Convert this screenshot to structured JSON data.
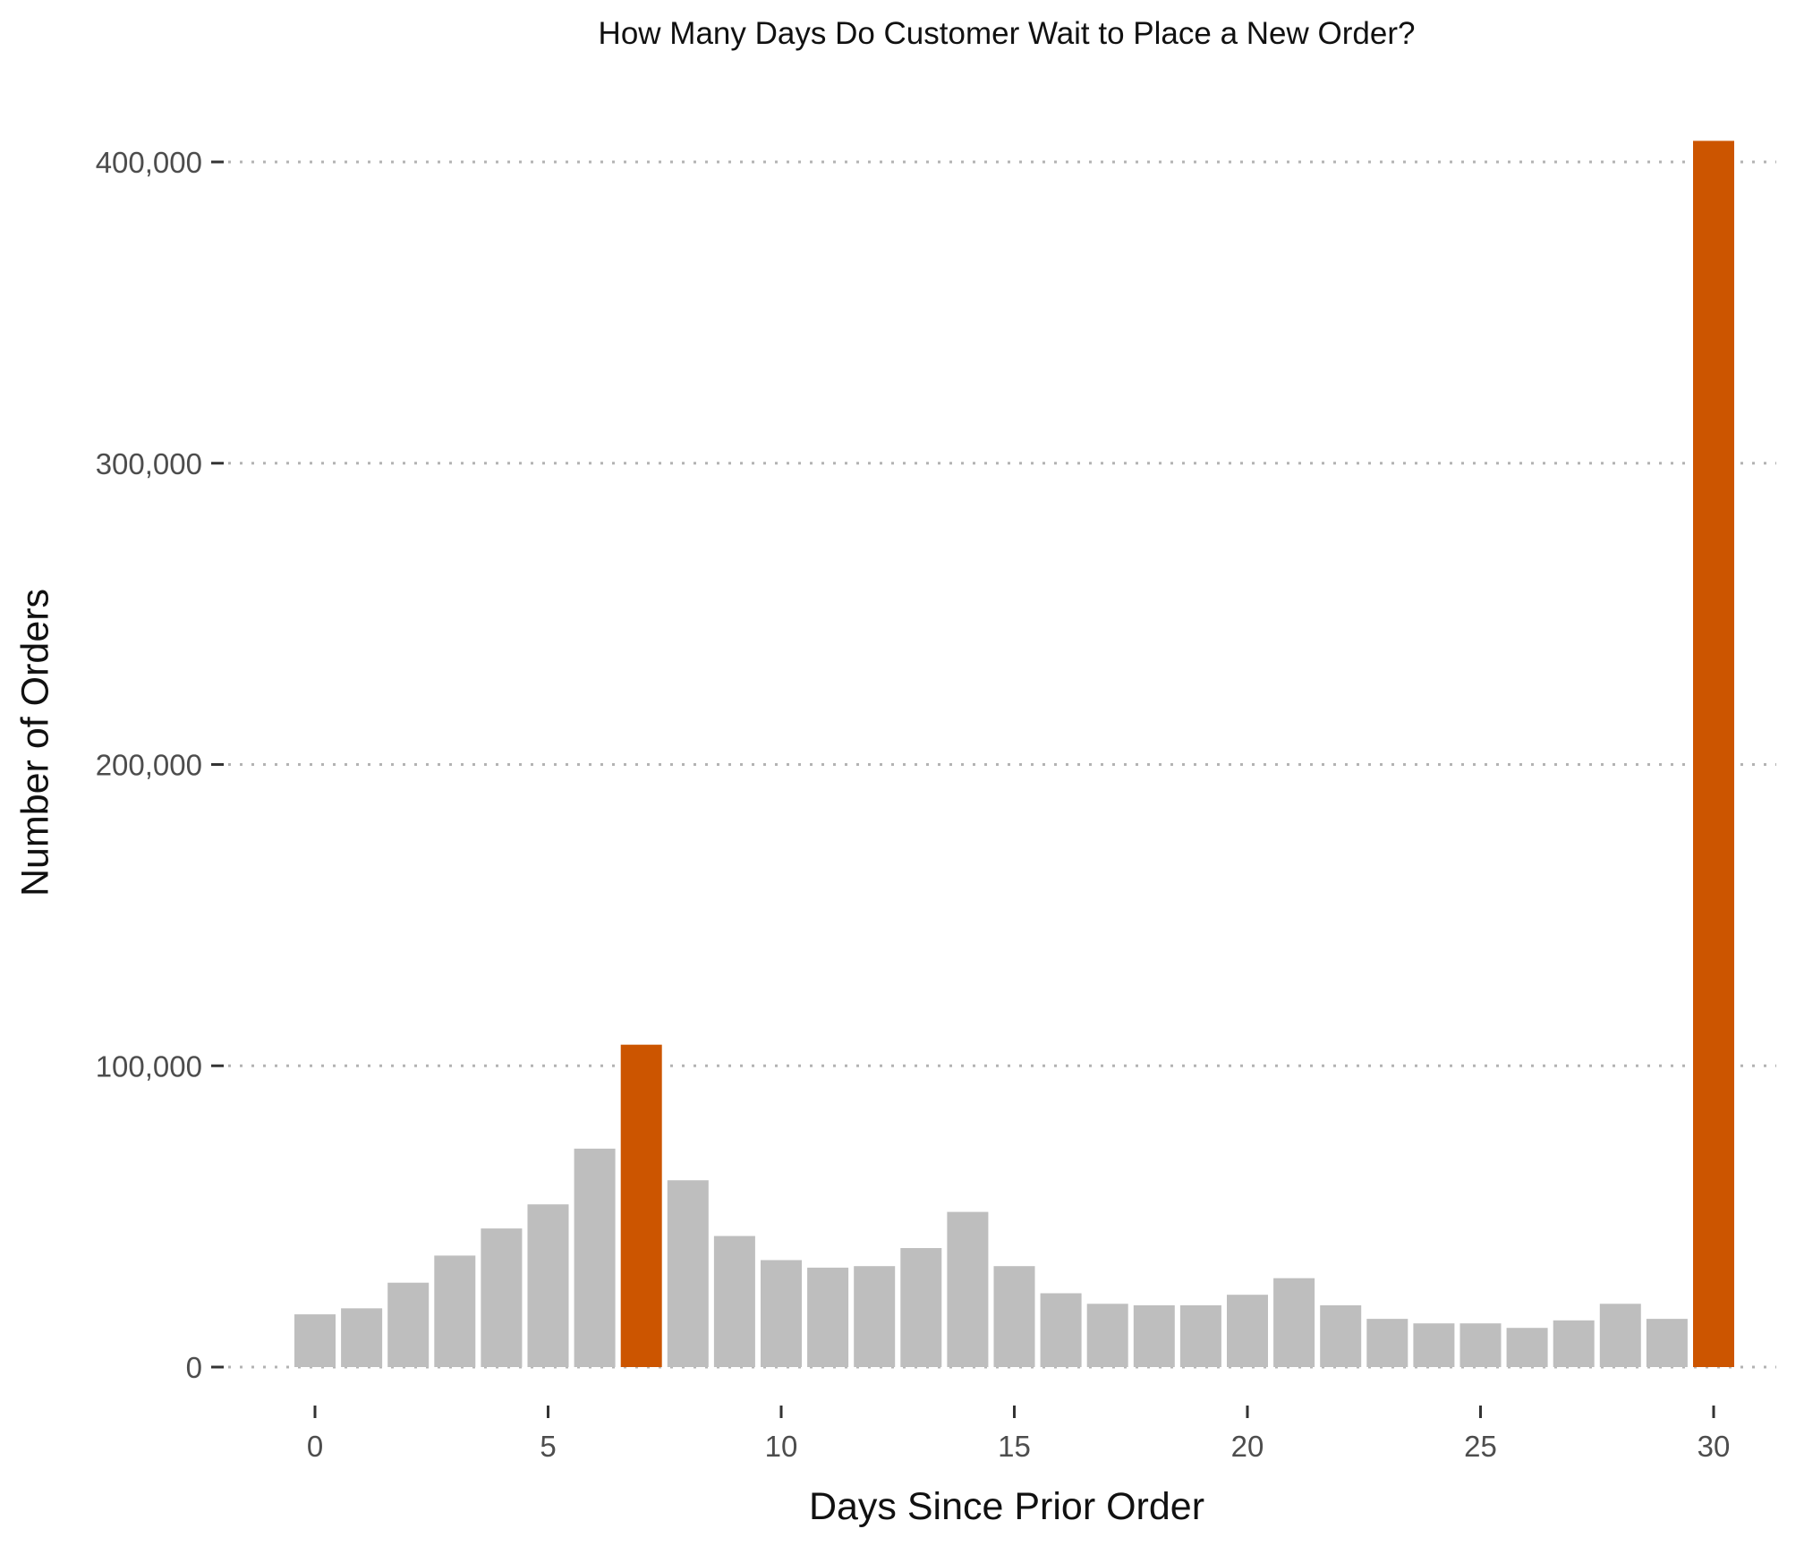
{
  "chart_data": {
    "type": "bar",
    "title": "How Many Days Do Customer Wait to Place a New Order?",
    "xlabel": "Days Since Prior Order",
    "ylabel": "Number of Orders",
    "x": [
      0,
      1,
      2,
      3,
      4,
      5,
      6,
      7,
      8,
      9,
      10,
      11,
      12,
      13,
      14,
      15,
      16,
      17,
      18,
      19,
      20,
      21,
      22,
      23,
      24,
      25,
      26,
      27,
      28,
      29,
      30
    ],
    "values": [
      17500,
      19500,
      28000,
      37000,
      46000,
      54000,
      72500,
      107000,
      62000,
      43500,
      35500,
      33000,
      33500,
      39500,
      51500,
      33500,
      24500,
      21000,
      20500,
      20500,
      24000,
      29500,
      20500,
      16000,
      14500,
      14500,
      13000,
      15500,
      21000,
      16000,
      407000
    ],
    "highlight": [
      7,
      30
    ],
    "colors": {
      "default": "#bebebe",
      "highlight": "#cc5500"
    },
    "ylim": [
      0,
      420000
    ],
    "y_ticks": [
      0,
      100000,
      200000,
      300000,
      400000
    ],
    "y_tick_labels": [
      "0",
      "100,000",
      "200,000",
      "300,000",
      "400,000"
    ],
    "x_ticks": [
      0,
      5,
      10,
      15,
      20,
      25,
      30
    ],
    "x_tick_labels": [
      "0",
      "5",
      "10",
      "15",
      "20",
      "25",
      "30"
    ],
    "grid": "horizontal-dotted",
    "legend": "none"
  }
}
